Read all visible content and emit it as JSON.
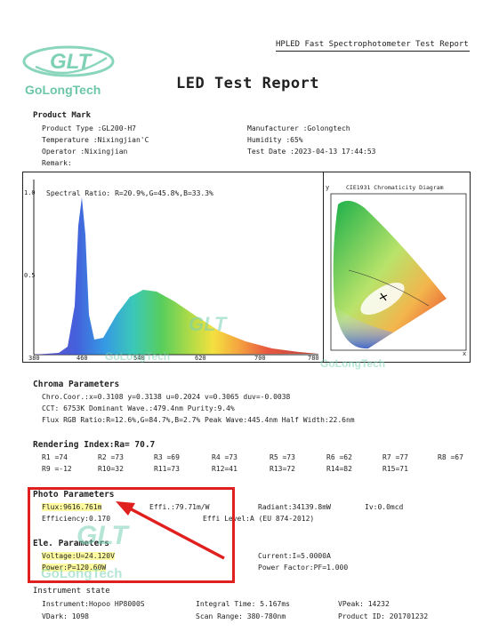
{
  "header": {
    "software": "HPLED Fast Spectrophotometer Test Report",
    "title": "LED Test Report"
  },
  "logo": {
    "mark": "GLT",
    "name": "GoLongTech"
  },
  "product": {
    "section": "Product Mark",
    "type": "Product Type :GL200-H7",
    "manufacturer": "Manufacturer :Golongtech",
    "temperature": "Temperature :Nixingjian'C",
    "humidity": "Humidity :65%",
    "operator": "Operator :Nixingjian",
    "test_date": "Test Date :2023-04-13 17:44:53",
    "remark": "Remark:"
  },
  "spectrum": {
    "ratio": "Spectral Ratio: R=20.9%,G=45.8%,B=33.3%",
    "y_labels": [
      "1.0",
      "0.5"
    ],
    "x_labels": [
      "380",
      "460",
      "540",
      "620",
      "700",
      "780"
    ]
  },
  "cie": {
    "title": "CIE1931 Chromaticity Diagram",
    "y_axis": "y",
    "x_axis": "x"
  },
  "chroma": {
    "section": "Chroma Parameters",
    "line1": "Chro.Coor.:x=0.3108 y=0.3138    u=0.2024 v=0.3065    duv=-0.0038",
    "line2": "CCT: 6753K  Dominant Wave.:479.4nm   Purity:9.4%",
    "line3": "Flux RGB Ratio:R=12.6%,G=84.7%,B=2.7%  Peak Wave:445.4nm  Half Width:22.6nm"
  },
  "rendering": {
    "section": "Rendering Index:Ra= 70.7",
    "row1": [
      "R1 =74",
      "R2 =73",
      "R3 =69",
      "R4 =73",
      "R5 =73",
      "R6 =62",
      "R7 =77",
      "R8 =67"
    ],
    "row2": [
      "R9 =-12",
      "R10=32",
      "R11=73",
      "R12=41",
      "R13=72",
      "R14=82",
      "R15=71"
    ]
  },
  "photo": {
    "section": "Photo Parameters",
    "flux": "Flux:9616.761m",
    "effi": "Effi.:79.71m/W",
    "radiant": "Radiant:34139.8mW",
    "iv": "Iv:0.0mcd",
    "efficiency": "Efficiency:0.170",
    "effi_level": "Effi Level:A (EU 874-2012)"
  },
  "ele": {
    "section": "Ele. Parameters",
    "voltage": "Voltage:U=24.120V",
    "current": "Current:I=5.0000A",
    "power": "Power:P=120.60W",
    "pf": "Power Factor:PF=1.000"
  },
  "instrument": {
    "section": "Instrument state",
    "instrument": "Instrument:Hopoo HP8000S",
    "integral": "Integral Time: 5.167ms",
    "vpeak": "VPeak: 14232",
    "vdark": "VDark: 1098",
    "scan": "Scan Range: 380-780nm",
    "product_id": "Product ID: 201701232"
  },
  "colors": {
    "highlight": "#e0201f",
    "watermark": "#7ad1b5"
  }
}
